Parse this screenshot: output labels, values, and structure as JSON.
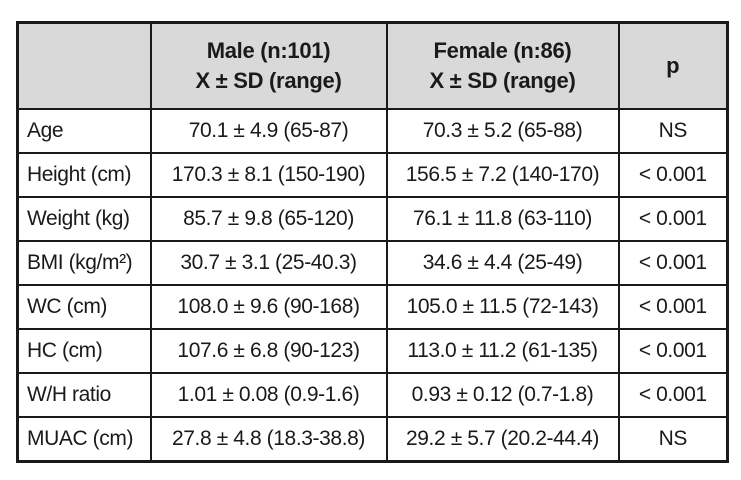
{
  "colors": {
    "header_background": "#d9d9d9",
    "border": "#1a1a1a",
    "text": "#1a1a1a",
    "page_background": "#ffffff"
  },
  "table": {
    "header": {
      "empty": "",
      "male_line1": "Male (n:101)",
      "male_line2": "X ± SD (range)",
      "female_line1": "Female (n:86)",
      "female_line2": "X ± SD (range)",
      "p": "p"
    },
    "rows": [
      {
        "label": "Age",
        "male": "70.1 ± 4.9 (65-87)",
        "female": "70.3 ± 5.2 (65-88)",
        "p": "NS"
      },
      {
        "label": "Height (cm)",
        "male": "170.3 ± 8.1 (150-190)",
        "female": "156.5 ± 7.2 (140-170)",
        "p": "< 0.001"
      },
      {
        "label": "Weight (kg)",
        "male": "85.7 ± 9.8 (65-120)",
        "female": "76.1 ± 11.8 (63-110)",
        "p": "< 0.001"
      },
      {
        "label": "BMI (kg/m²)",
        "male": "30.7 ± 3.1 (25-40.3)",
        "female": "34.6 ± 4.4 (25-49)",
        "p": "< 0.001"
      },
      {
        "label": "WC (cm)",
        "male": "108.0 ± 9.6 (90-168)",
        "female": "105.0 ± 11.5 (72-143)",
        "p": "< 0.001"
      },
      {
        "label": "HC (cm)",
        "male": "107.6 ± 6.8 (90-123)",
        "female": "113.0 ± 11.2 (61-135)",
        "p": "< 0.001"
      },
      {
        "label": "W/H ratio",
        "male": "1.01 ± 0.08 (0.9-1.6)",
        "female": "0.93 ± 0.12 (0.7-1.8)",
        "p": "< 0.001"
      },
      {
        "label": "MUAC (cm)",
        "male": "27.8 ± 4.8 (18.3-38.8)",
        "female": "29.2 ± 5.7 (20.2-44.4)",
        "p": "NS"
      }
    ]
  }
}
